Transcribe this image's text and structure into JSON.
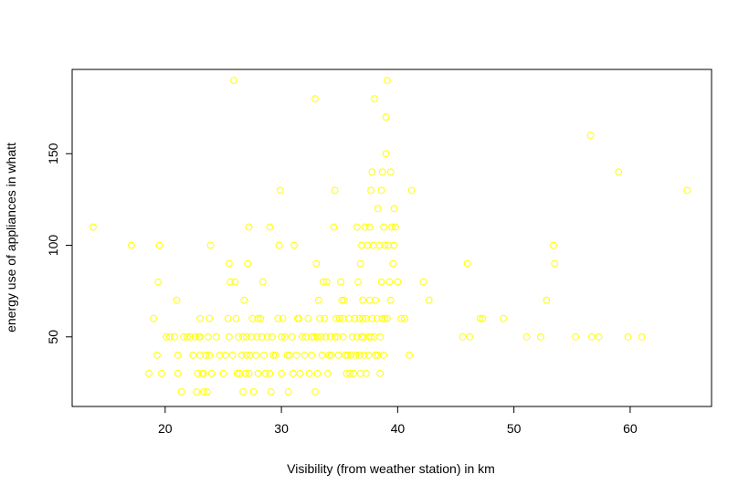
{
  "chart_data": {
    "type": "scatter",
    "title": "",
    "xlabel": "Visibility (from weather station) in km",
    "ylabel": "energy use of appliances in whatt",
    "xlim": [
      12,
      67
    ],
    "ylim": [
      12,
      196
    ],
    "x_ticks": [
      20,
      30,
      40,
      50,
      60
    ],
    "y_ticks": [
      50,
      100,
      150
    ],
    "grid": false,
    "legend": "none",
    "marker": "open-circle",
    "point_color": "#ffff00",
    "points": [
      [
        13.8,
        110
      ],
      [
        17.1,
        100
      ],
      [
        18.6,
        30
      ],
      [
        19.0,
        60
      ],
      [
        19.3,
        40
      ],
      [
        19.4,
        80
      ],
      [
        19.5,
        100
      ],
      [
        19.7,
        30
      ],
      [
        20.1,
        50
      ],
      [
        20.4,
        50
      ],
      [
        20.8,
        50
      ],
      [
        21.0,
        70
      ],
      [
        21.1,
        40
      ],
      [
        21.1,
        30
      ],
      [
        21.4,
        20
      ],
      [
        21.6,
        50
      ],
      [
        21.9,
        50
      ],
      [
        22.2,
        50
      ],
      [
        22.4,
        40
      ],
      [
        22.6,
        50
      ],
      [
        22.7,
        20
      ],
      [
        22.8,
        30
      ],
      [
        22.9,
        50
      ],
      [
        23.0,
        60
      ],
      [
        23.0,
        50
      ],
      [
        23.0,
        40
      ],
      [
        23.2,
        30
      ],
      [
        23.3,
        20
      ],
      [
        23.3,
        30
      ],
      [
        23.5,
        40
      ],
      [
        23.6,
        20
      ],
      [
        23.7,
        50
      ],
      [
        23.8,
        40
      ],
      [
        23.8,
        60
      ],
      [
        23.9,
        100
      ],
      [
        24.0,
        30
      ],
      [
        24.4,
        50
      ],
      [
        24.7,
        40
      ],
      [
        25.0,
        30
      ],
      [
        25.2,
        40
      ],
      [
        25.4,
        60
      ],
      [
        25.5,
        90
      ],
      [
        25.5,
        50
      ],
      [
        25.6,
        80
      ],
      [
        25.8,
        40
      ],
      [
        25.9,
        190
      ],
      [
        26.0,
        80
      ],
      [
        26.1,
        60
      ],
      [
        26.2,
        30
      ],
      [
        26.3,
        50
      ],
      [
        26.4,
        30
      ],
      [
        26.6,
        40
      ],
      [
        26.7,
        50
      ],
      [
        26.7,
        20
      ],
      [
        26.8,
        70
      ],
      [
        26.9,
        30
      ],
      [
        27.0,
        40
      ],
      [
        27.0,
        50
      ],
      [
        27.1,
        90
      ],
      [
        27.2,
        110
      ],
      [
        27.2,
        30
      ],
      [
        27.3,
        40
      ],
      [
        27.4,
        50
      ],
      [
        27.5,
        60
      ],
      [
        27.6,
        20
      ],
      [
        27.8,
        40
      ],
      [
        27.9,
        50
      ],
      [
        28.0,
        60
      ],
      [
        28.0,
        30
      ],
      [
        28.2,
        60
      ],
      [
        28.3,
        50
      ],
      [
        28.4,
        80
      ],
      [
        28.5,
        40
      ],
      [
        28.6,
        30
      ],
      [
        28.8,
        50
      ],
      [
        29.0,
        110
      ],
      [
        29.0,
        30
      ],
      [
        29.1,
        20
      ],
      [
        29.2,
        50
      ],
      [
        29.3,
        40
      ],
      [
        29.5,
        40
      ],
      [
        29.7,
        60
      ],
      [
        29.8,
        100
      ],
      [
        29.9,
        130
      ],
      [
        30.0,
        50
      ],
      [
        30.0,
        30
      ],
      [
        30.1,
        60
      ],
      [
        30.3,
        50
      ],
      [
        30.5,
        40
      ],
      [
        30.6,
        20
      ],
      [
        30.7,
        40
      ],
      [
        30.9,
        50
      ],
      [
        31.0,
        30
      ],
      [
        31.1,
        100
      ],
      [
        31.3,
        40
      ],
      [
        31.4,
        60
      ],
      [
        31.5,
        60
      ],
      [
        31.6,
        30
      ],
      [
        31.8,
        50
      ],
      [
        32.0,
        40
      ],
      [
        32.1,
        50
      ],
      [
        32.3,
        60
      ],
      [
        32.4,
        30
      ],
      [
        32.6,
        50
      ],
      [
        32.6,
        40
      ],
      [
        32.8,
        50
      ],
      [
        32.9,
        20
      ],
      [
        32.9,
        180
      ],
      [
        33.0,
        90
      ],
      [
        33.1,
        30
      ],
      [
        33.1,
        50
      ],
      [
        33.2,
        70
      ],
      [
        33.3,
        60
      ],
      [
        33.4,
        50
      ],
      [
        33.5,
        40
      ],
      [
        33.6,
        80
      ],
      [
        33.7,
        60
      ],
      [
        33.8,
        50
      ],
      [
        33.9,
        80
      ],
      [
        34.0,
        30
      ],
      [
        34.1,
        40
      ],
      [
        34.2,
        50
      ],
      [
        34.3,
        40
      ],
      [
        34.5,
        110
      ],
      [
        34.6,
        130
      ],
      [
        34.6,
        50
      ],
      [
        34.7,
        60
      ],
      [
        34.8,
        50
      ],
      [
        34.9,
        40
      ],
      [
        35.0,
        60
      ],
      [
        35.1,
        80
      ],
      [
        35.2,
        70
      ],
      [
        35.3,
        50
      ],
      [
        35.3,
        60
      ],
      [
        35.4,
        70
      ],
      [
        35.5,
        40
      ],
      [
        35.6,
        30
      ],
      [
        35.7,
        40
      ],
      [
        35.8,
        60
      ],
      [
        35.9,
        30
      ],
      [
        36.0,
        40
      ],
      [
        36.1,
        50
      ],
      [
        36.2,
        30
      ],
      [
        36.3,
        60
      ],
      [
        36.4,
        40
      ],
      [
        36.5,
        110
      ],
      [
        36.5,
        50
      ],
      [
        36.6,
        80
      ],
      [
        36.7,
        40
      ],
      [
        36.7,
        60
      ],
      [
        36.8,
        90
      ],
      [
        36.8,
        30
      ],
      [
        36.9,
        50
      ],
      [
        36.9,
        100
      ],
      [
        37.0,
        60
      ],
      [
        37.0,
        70
      ],
      [
        37.1,
        40
      ],
      [
        37.1,
        50
      ],
      [
        37.2,
        110
      ],
      [
        37.3,
        60
      ],
      [
        37.3,
        30
      ],
      [
        37.4,
        100
      ],
      [
        37.5,
        40
      ],
      [
        37.5,
        50
      ],
      [
        37.6,
        110
      ],
      [
        37.6,
        70
      ],
      [
        37.7,
        130
      ],
      [
        37.7,
        50
      ],
      [
        37.8,
        140
      ],
      [
        37.8,
        60
      ],
      [
        37.9,
        100
      ],
      [
        38.0,
        180
      ],
      [
        38.0,
        50
      ],
      [
        38.1,
        40
      ],
      [
        38.1,
        70
      ],
      [
        38.2,
        60
      ],
      [
        38.3,
        120
      ],
      [
        38.3,
        40
      ],
      [
        38.4,
        100
      ],
      [
        38.5,
        50
      ],
      [
        38.5,
        30
      ],
      [
        38.6,
        130
      ],
      [
        38.6,
        80
      ],
      [
        38.7,
        60
      ],
      [
        38.7,
        140
      ],
      [
        38.8,
        110
      ],
      [
        38.8,
        40
      ],
      [
        38.9,
        100
      ],
      [
        38.9,
        60
      ],
      [
        39.0,
        170
      ],
      [
        39.0,
        150
      ],
      [
        39.1,
        190
      ],
      [
        39.1,
        60
      ],
      [
        39.2,
        100
      ],
      [
        39.3,
        80
      ],
      [
        39.4,
        70
      ],
      [
        39.4,
        140
      ],
      [
        39.5,
        110
      ],
      [
        39.6,
        90
      ],
      [
        39.7,
        100
      ],
      [
        39.7,
        120
      ],
      [
        39.8,
        110
      ],
      [
        40.0,
        80
      ],
      [
        40.3,
        60
      ],
      [
        40.6,
        60
      ],
      [
        41.0,
        40
      ],
      [
        41.2,
        130
      ],
      [
        42.2,
        80
      ],
      [
        42.7,
        70
      ],
      [
        45.6,
        50
      ],
      [
        46.0,
        90
      ],
      [
        46.2,
        50
      ],
      [
        47.1,
        60
      ],
      [
        47.3,
        60
      ],
      [
        49.1,
        60
      ],
      [
        51.1,
        50
      ],
      [
        52.3,
        50
      ],
      [
        52.8,
        70
      ],
      [
        53.4,
        100
      ],
      [
        53.5,
        90
      ],
      [
        55.3,
        50
      ],
      [
        56.6,
        160
      ],
      [
        56.7,
        50
      ],
      [
        57.3,
        50
      ],
      [
        59.0,
        140
      ],
      [
        59.8,
        50
      ],
      [
        61.0,
        50
      ],
      [
        64.9,
        130
      ]
    ]
  }
}
